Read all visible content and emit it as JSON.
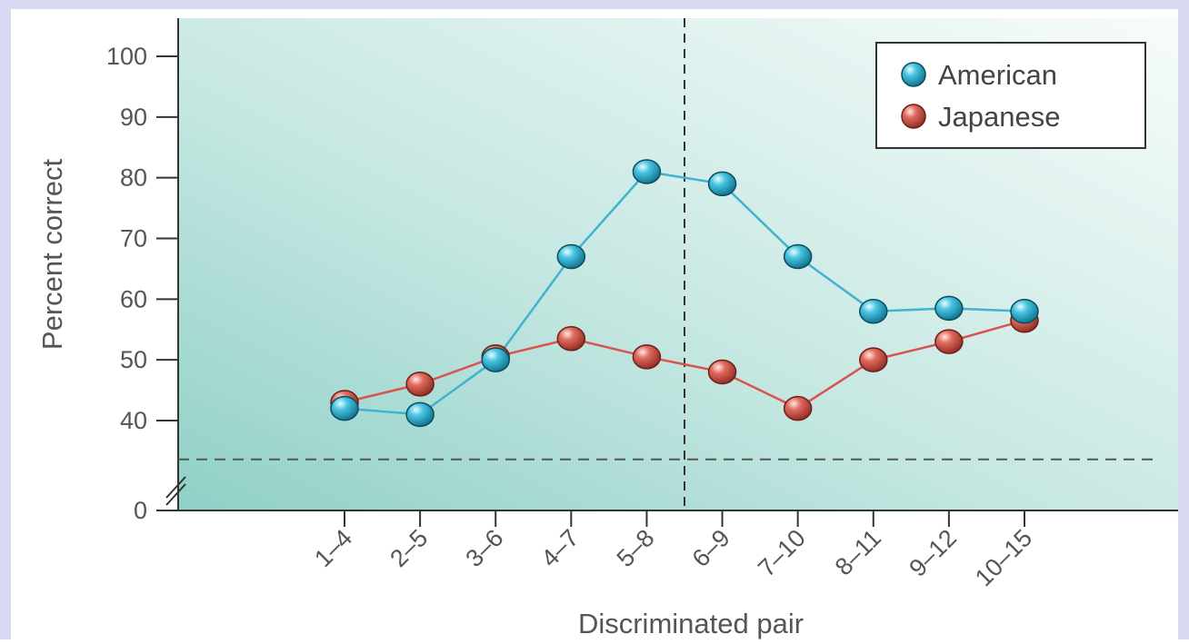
{
  "chart_data": {
    "type": "line",
    "title": "",
    "xlabel": "Discriminated pair",
    "ylabel": "Percent correct",
    "categories": [
      "1–4",
      "2–5",
      "3–6",
      "4–7",
      "5–8",
      "6–9",
      "7–10",
      "8–11",
      "9–12",
      "10–15"
    ],
    "y_ticks": [
      "100",
      "90",
      "80",
      "70",
      "60",
      "50",
      "40",
      "0"
    ],
    "ylim": [
      40,
      100
    ],
    "axis_break": true,
    "chance_level": 33,
    "category_boundary": "between 5–8 and 6–9",
    "grid": false,
    "legend_position": "top-right",
    "series": [
      {
        "name": "American",
        "color": "#3fb3cf",
        "values": [
          42,
          41,
          50,
          67,
          81,
          79,
          67,
          58,
          58.5,
          58
        ]
      },
      {
        "name": "Japanese",
        "color": "#d9534f",
        "values": [
          43,
          46,
          50.5,
          53.5,
          50.5,
          48,
          42,
          50,
          53,
          56.5
        ]
      }
    ]
  },
  "colors": {
    "page_border": "#d8d8f2",
    "panel_dark": "#8fd0c6",
    "panel_light": "#f5fbfa"
  }
}
